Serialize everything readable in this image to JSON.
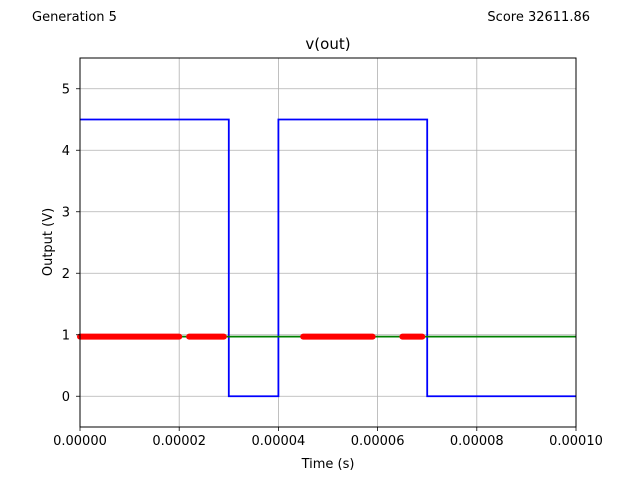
{
  "header": {
    "generation": "Generation 5",
    "score": "Score 32611.86"
  },
  "chart_data": {
    "type": "line",
    "title": "v(out)",
    "xlabel": "Time (s)",
    "ylabel": "Output (V)",
    "xlim": [
      0,
      0.0001
    ],
    "ylim": [
      -0.5,
      5.5
    ],
    "x_ticks": [
      0,
      2e-05,
      4e-05,
      6e-05,
      8e-05,
      0.0001
    ],
    "x_tick_labels": [
      "0.00000",
      "0.00002",
      "0.00004",
      "0.00006",
      "0.00008",
      "0.00010"
    ],
    "y_ticks": [
      0,
      1,
      2,
      3,
      4,
      5
    ],
    "y_tick_labels": [
      "0",
      "1",
      "2",
      "3",
      "4",
      "5"
    ],
    "grid": true,
    "series": [
      {
        "color": "#0000ff",
        "style": "step",
        "x": [
          0,
          3e-05,
          3e-05,
          4e-05,
          4e-05,
          7e-05,
          7e-05,
          0.0001
        ],
        "y": [
          4.5,
          4.5,
          0,
          0,
          4.5,
          4.5,
          0,
          0
        ]
      },
      {
        "color": "#008000",
        "style": "line",
        "x": [
          0,
          0.0001
        ],
        "y": [
          0.97,
          0.97
        ]
      },
      {
        "color": "#ff0000",
        "style": "thick-segments",
        "segments": [
          [
            0,
            2e-05
          ],
          [
            2.2e-05,
            2.9e-05
          ],
          [
            4.5e-05,
            5.9e-05
          ],
          [
            6.5e-05,
            6.9e-05
          ]
        ],
        "y": 0.97
      }
    ]
  }
}
